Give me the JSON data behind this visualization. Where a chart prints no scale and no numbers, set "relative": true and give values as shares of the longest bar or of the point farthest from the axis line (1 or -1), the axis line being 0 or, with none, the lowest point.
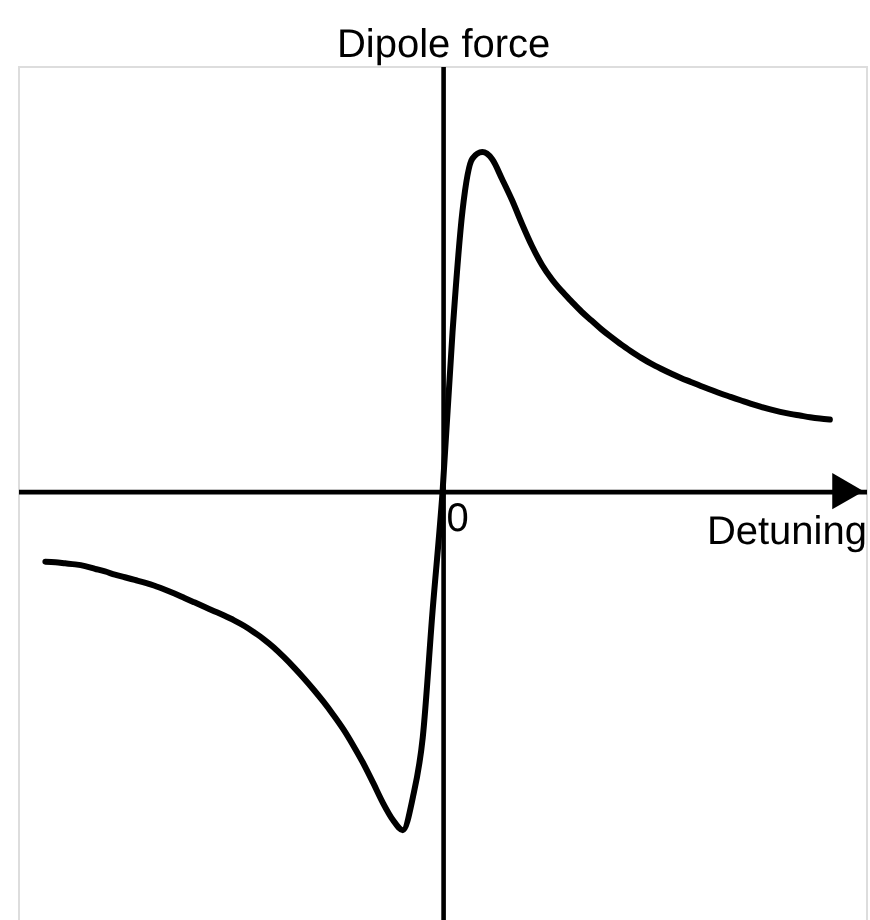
{
  "chart_data": {
    "type": "line",
    "xlabel": "Detuning",
    "ylabel": "Dipole force",
    "relative": true,
    "color": "#000000",
    "annotations": [
      "0"
    ],
    "categories": [
      null,
      null,
      null,
      null,
      null,
      null,
      null,
      null,
      null,
      null,
      null,
      null,
      null,
      null,
      null,
      null,
      null,
      null,
      null,
      null,
      null,
      null,
      null,
      null,
      null,
      null,
      null,
      null,
      null,
      null,
      null,
      null,
      null,
      null,
      null,
      null,
      null,
      null,
      null,
      null,
      null,
      null,
      null,
      null,
      null,
      null,
      null,
      null,
      null,
      null,
      null,
      null,
      null,
      null,
      null,
      null,
      null,
      null,
      null,
      null,
      null,
      null,
      null,
      null,
      null,
      null,
      null,
      null,
      null,
      null,
      null,
      null,
      null,
      null,
      null,
      null,
      null,
      null,
      null,
      null
    ],
    "values": [
      -0.208,
      -0.21,
      -0.213,
      -0.216,
      -0.221,
      -0.229,
      -0.237,
      -0.246,
      -0.254,
      -0.262,
      -0.27,
      -0.279,
      -0.29,
      -0.302,
      -0.315,
      -0.328,
      -0.341,
      -0.354,
      -0.367,
      -0.381,
      -0.397,
      -0.416,
      -0.437,
      -0.461,
      -0.489,
      -0.519,
      -0.551,
      -0.585,
      -0.621,
      -0.66,
      -0.702,
      -0.75,
      -0.802,
      -0.86,
      -0.92,
      -0.97,
      -1.0,
      -0.904,
      -0.727,
      -0.35,
      0,
      0.469,
      0.826,
      0.981,
      1.0,
      0.979,
      0.92,
      0.858,
      0.788,
      0.723,
      0.668,
      0.625,
      0.59,
      0.559,
      0.529,
      0.503,
      0.477,
      0.454,
      0.432,
      0.412,
      0.393,
      0.376,
      0.361,
      0.347,
      0.334,
      0.322,
      0.31,
      0.299,
      0.288,
      0.278,
      0.268,
      0.258,
      0.249,
      0.241,
      0.234,
      0.228,
      0.223,
      0.218,
      0.214,
      0.211
    ]
  }
}
